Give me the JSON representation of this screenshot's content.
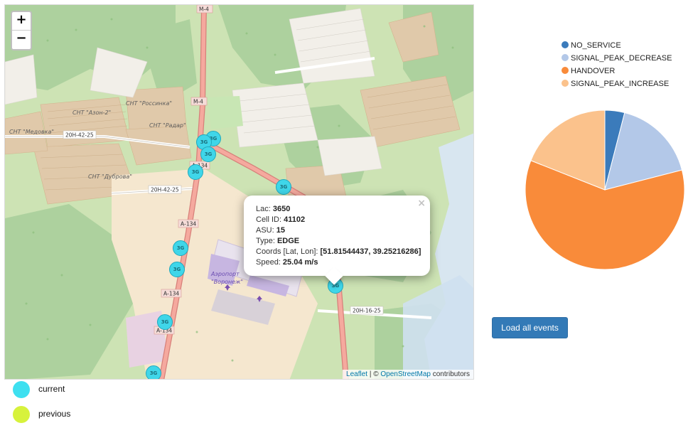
{
  "map": {
    "zoom_in": "+",
    "zoom_out": "−",
    "attribution": {
      "leaflet": "Leaflet",
      "sep": " | © ",
      "osm": "OpenStreetMap",
      "suffix": " contributors"
    },
    "place_labels": [
      {
        "text": "СНТ \"Азон-2\""
      },
      {
        "text": "СНТ \"Россинка\""
      },
      {
        "text": "СНТ \"Медовка\""
      },
      {
        "text": "СНТ \"Радар\""
      },
      {
        "text": "СНТ \"Дуброва\""
      },
      {
        "text": "Аэропорт"
      },
      {
        "text": "\"Воронеж\""
      }
    ],
    "road_labels": [
      {
        "text": "М-4"
      },
      {
        "text": "М-4"
      },
      {
        "text": "20Н-42-25"
      },
      {
        "text": "20Н-42-25"
      },
      {
        "text": "А-134"
      },
      {
        "text": "А-134"
      },
      {
        "text": "А-134"
      },
      {
        "text": "А-134"
      },
      {
        "text": "20Н-16-25"
      }
    ],
    "marker_label": "3G",
    "popup": {
      "close": "×",
      "lac_label": "Lac: ",
      "lac": "3650",
      "cell_label": "Cell ID: ",
      "cell": "41102",
      "asu_label": "ASU: ",
      "asu": "15",
      "type_label": "Type: ",
      "type": "EDGE",
      "coords_label": "Coords [Lat, Lon]: ",
      "coords": "[51.81544437, 39.25216286]",
      "speed_label": "Speed: ",
      "speed": "25.04 m/s"
    }
  },
  "chart_data": {
    "type": "pie",
    "categories": [
      "NO_SERVICE",
      "SIGNAL_PEAK_DECREASE",
      "HANDOVER",
      "SIGNAL_PEAK_INCREASE"
    ],
    "values": [
      4,
      17,
      60,
      19
    ],
    "colors": [
      "#3b7bbb",
      "#b3c8e8",
      "#f98b3a",
      "#fbc28c"
    ],
    "legend_position": "top"
  },
  "controls": {
    "load_all": "Load all events"
  },
  "legend": {
    "current": {
      "label": "current",
      "color": "#3ee0f0"
    },
    "previous": {
      "label": "previous",
      "color": "#d7f23c"
    }
  }
}
